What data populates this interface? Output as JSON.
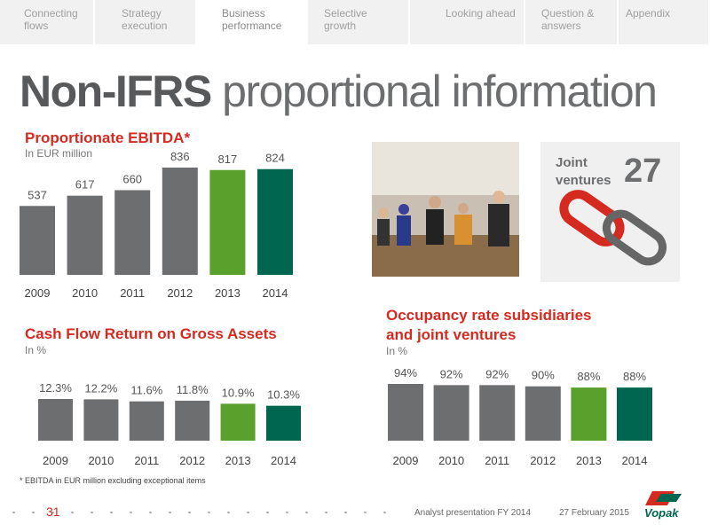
{
  "nav": {
    "tabs": [
      "Connecting flows",
      "Strategy execution",
      "Business performance",
      "Selective growth",
      "Looking ahead",
      "Question & answers",
      "Appendix"
    ],
    "active": 2
  },
  "title": {
    "bold": "Non-IFRS",
    "rest": "proportional information"
  },
  "chart_data": [
    {
      "type": "bar",
      "title": "Proportionate EBITDA*",
      "subtitle": "In EUR million",
      "categories": [
        "2009",
        "2010",
        "2011",
        "2012",
        "2013",
        "2014"
      ],
      "values": [
        537,
        617,
        660,
        836,
        817,
        824
      ],
      "colors": [
        "#6d6e70",
        "#6d6e70",
        "#6d6e70",
        "#6d6e70",
        "#5aa02c",
        "#00664f"
      ]
    },
    {
      "type": "bar",
      "title": "Cash Flow Return on Gross Assets",
      "subtitle": "In %",
      "categories": [
        "2009",
        "2010",
        "2011",
        "2012",
        "2013",
        "2014"
      ],
      "values": [
        12.3,
        12.2,
        11.6,
        11.8,
        10.9,
        10.3
      ],
      "value_labels": [
        "12.3%",
        "12.2%",
        "11.6%",
        "11.8%",
        "10.9%",
        "10.3%"
      ],
      "colors": [
        "#6d6e70",
        "#6d6e70",
        "#6d6e70",
        "#6d6e70",
        "#5aa02c",
        "#00664f"
      ]
    },
    {
      "type": "bar",
      "title": "Occupancy rate subsidiaries and joint ventures",
      "subtitle": "In %",
      "categories": [
        "2009",
        "2010",
        "2011",
        "2012",
        "2013",
        "2014"
      ],
      "values": [
        94,
        92,
        92,
        90,
        88,
        88
      ],
      "value_labels": [
        "94%",
        "92%",
        "92%",
        "90%",
        "88%",
        "88%"
      ],
      "colors": [
        "#6d6e70",
        "#6d6e70",
        "#6d6e70",
        "#6d6e70",
        "#5aa02c",
        "#00664f"
      ]
    }
  ],
  "joint_ventures": {
    "label": "Joint ventures",
    "count": 27
  },
  "footnote": "* EBITDA in EUR million excluding exceptional items",
  "footer": {
    "page": "31",
    "presentation": "Analyst presentation FY 2014",
    "date": "27 February 2015",
    "logo": "Vopak"
  }
}
